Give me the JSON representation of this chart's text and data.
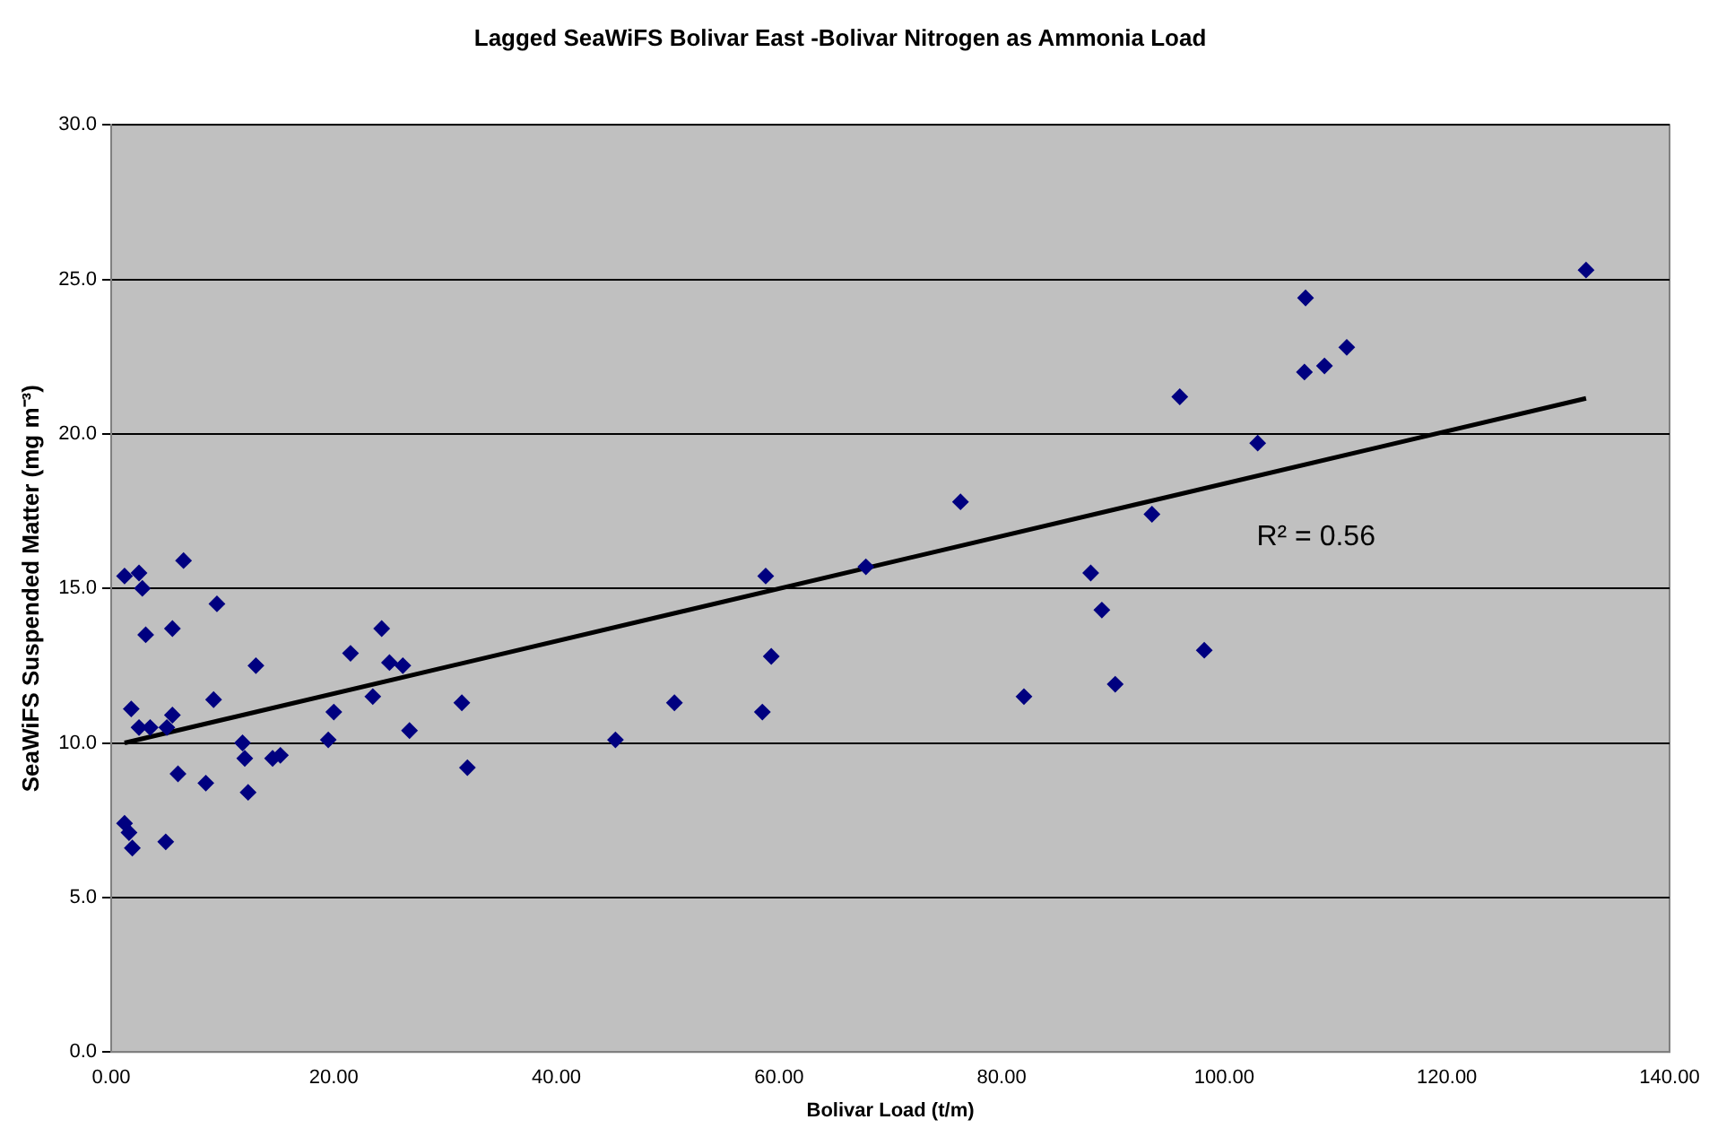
{
  "chart_data": {
    "type": "scatter",
    "title": "Lagged SeaWiFS Bolivar East -Bolivar Nitrogen as Ammonia Load",
    "xlabel": "Bolivar Load (t/m)",
    "ylabel": "SeaWiFS Suspended Matter (mg m⁻³)",
    "xlim": [
      0,
      140
    ],
    "xticks": [
      {
        "value": 0,
        "label": "0.00"
      },
      {
        "value": 20,
        "label": "20.00"
      },
      {
        "value": 40,
        "label": "40.00"
      },
      {
        "value": 60,
        "label": "60.00"
      },
      {
        "value": 80,
        "label": "80.00"
      },
      {
        "value": 100,
        "label": "100.00"
      },
      {
        "value": 120,
        "label": "120.00"
      },
      {
        "value": 140,
        "label": "140.00"
      }
    ],
    "ylim": [
      0,
      30
    ],
    "yticks": [
      {
        "value": 0,
        "label": "0.0"
      },
      {
        "value": 5,
        "label": "5.0"
      },
      {
        "value": 10,
        "label": "10.0"
      },
      {
        "value": 15,
        "label": "15.0"
      },
      {
        "value": 20,
        "label": "20.0"
      },
      {
        "value": 25,
        "label": "25.0"
      },
      {
        "value": 30,
        "label": "30.0"
      }
    ],
    "grid": "y",
    "legend": false,
    "marker": "diamond",
    "series": [
      {
        "color": "#000080",
        "x": [
          1.2,
          2.5,
          2.8,
          3.1,
          6.5,
          9.5,
          5.5,
          1.8,
          2.5,
          3.5,
          5,
          5.5,
          9.2,
          13,
          6,
          8.5,
          11.8,
          12,
          12.3,
          14.5,
          15.2,
          1.2,
          1.6,
          1.9,
          4.9,
          19.5,
          20,
          21.5,
          23.5,
          24.3,
          25,
          26.2,
          26.8,
          31.5,
          32,
          45.3,
          50.6,
          58.5,
          58.8,
          59.3,
          67.8,
          76.3,
          82,
          88,
          89,
          90.2,
          93.5,
          96,
          98.2,
          103,
          107.2,
          107.3,
          109,
          111,
          132.5
        ],
        "values": [
          15.4,
          15.5,
          15.0,
          13.5,
          15.9,
          14.5,
          13.7,
          11.1,
          10.5,
          10.5,
          10.5,
          10.9,
          11.4,
          12.5,
          9.0,
          8.7,
          10.0,
          9.5,
          8.4,
          9.5,
          9.6,
          7.4,
          7.1,
          6.6,
          6.8,
          10.1,
          11.0,
          12.9,
          11.5,
          13.7,
          12.6,
          12.5,
          10.4,
          11.3,
          9.2,
          10.1,
          11.3,
          11.0,
          15.4,
          12.8,
          15.7,
          17.8,
          11.5,
          15.5,
          14.3,
          11.9,
          17.4,
          21.2,
          13.0,
          19.7,
          22.0,
          24.4,
          22.2,
          22.8,
          25.3
        ]
      },
      {
        "type": "line",
        "color": "#000000",
        "marker": "none",
        "x": [
          1.2,
          132.5
        ],
        "values": [
          10.0,
          21.15
        ]
      }
    ],
    "annotations": [
      "R² = 0.56"
    ]
  }
}
